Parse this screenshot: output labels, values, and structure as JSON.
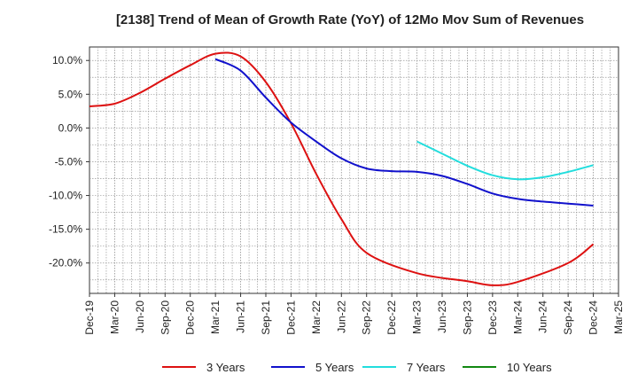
{
  "chart_data": {
    "type": "line",
    "title": "[2138]  Trend of Mean of Growth Rate (YoY) of 12Mo Mov Sum of Revenues",
    "xlabel": "",
    "ylabel": "",
    "ylim": [
      -24.5,
      12
    ],
    "x_categories": [
      "Dec-19",
      "Mar-20",
      "Jun-20",
      "Sep-20",
      "Dec-20",
      "Mar-21",
      "Jun-21",
      "Sep-21",
      "Dec-21",
      "Mar-22",
      "Jun-22",
      "Sep-22",
      "Dec-22",
      "Mar-23",
      "Jun-23",
      "Sep-23",
      "Dec-23",
      "Mar-24",
      "Jun-24",
      "Sep-24",
      "Dec-24",
      "Mar-25"
    ],
    "y_ticks": [
      10,
      5,
      0,
      -5,
      -10,
      -15,
      -20
    ],
    "y_tick_labels": [
      "10.0%",
      "5.0%",
      "0.0%",
      "-5.0%",
      "-10.0%",
      "-15.0%",
      "-20.0%"
    ],
    "grid": true,
    "legend_position": "bottom",
    "series": [
      {
        "name": "3 Years",
        "color": "#dd1111",
        "values": [
          3.2,
          3.6,
          5.2,
          7.3,
          9.3,
          11.0,
          10.6,
          6.8,
          0.7,
          -6.8,
          -13.5,
          -18.5,
          -21.5,
          -22.7,
          -23.3,
          -22.8,
          -20.0,
          -17.2
        ],
        "x_index": [
          0,
          1,
          2,
          3,
          4,
          5,
          6,
          7,
          8,
          9,
          10,
          11,
          12,
          13,
          14,
          15,
          16,
          17
        ],
        "x_values": [
          0,
          1,
          2,
          3,
          4,
          5,
          6,
          7,
          8,
          9,
          10,
          11,
          13,
          15,
          16,
          17,
          19,
          20
        ]
      },
      {
        "name": "5 Years",
        "color": "#1111cc",
        "values": [
          10.2,
          8.5,
          4.5,
          0.8,
          -2.0,
          -4.5,
          -6.0,
          -6.4,
          -6.5,
          -7.1,
          -8.3,
          -9.7,
          -10.5,
          -10.9,
          -11.2,
          -11.5
        ],
        "x_values": [
          5,
          6,
          7,
          8,
          9,
          10,
          11,
          12,
          13,
          14,
          15,
          16,
          17,
          18,
          19,
          20
        ]
      },
      {
        "name": "7 Years",
        "color": "#22dddd",
        "values": [
          -2.0,
          -3.8,
          -5.6,
          -7.0,
          -7.6,
          -7.3,
          -6.5,
          -5.5
        ],
        "x_values": [
          13,
          14,
          15,
          16,
          17,
          18,
          19,
          20
        ]
      },
      {
        "name": "10 Years",
        "color": "#118811",
        "values": [],
        "x_values": []
      }
    ]
  }
}
